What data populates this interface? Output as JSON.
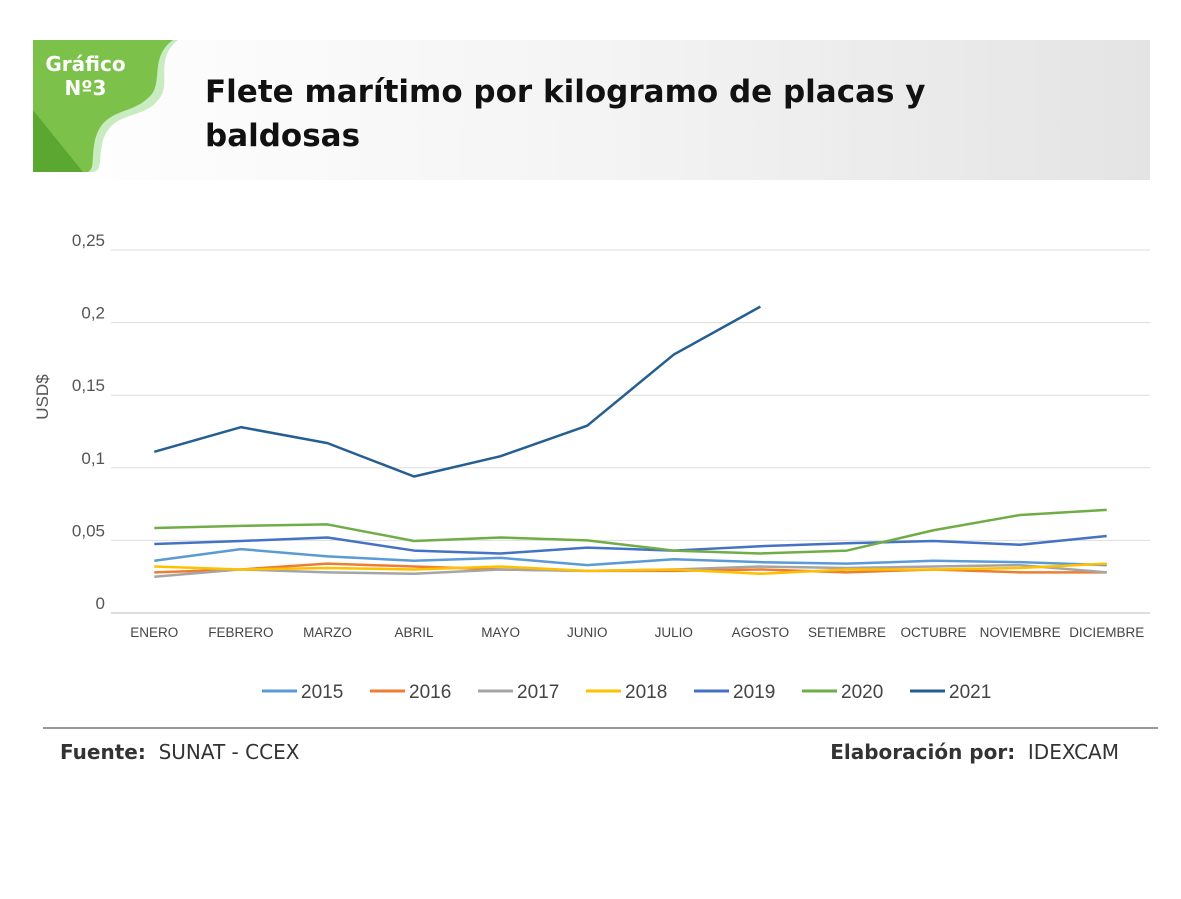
{
  "badge": {
    "line1": "Gráfico",
    "line2": "Nº3"
  },
  "chart_data": {
    "type": "line",
    "title": "Flete marítimo por kilogramo de placas y baldosas",
    "y_label": "USD$",
    "categories": [
      "ENERO",
      "FEBRERO",
      "MARZO",
      "ABRIL",
      "MAYO",
      "JUNIO",
      "JULIO",
      "AGOSTO",
      "SETIEMBRE",
      "OCTUBRE",
      "NOVIEMBRE",
      "DICIEMBRE"
    ],
    "series": [
      {
        "name": "2015",
        "color": "#5b9bd5",
        "values": [
          0.036,
          0.044,
          0.039,
          0.036,
          0.038,
          0.033,
          0.037,
          0.035,
          0.034,
          0.036,
          0.035,
          0.033
        ]
      },
      {
        "name": "2016",
        "color": "#ed7d31",
        "values": [
          0.028,
          0.03,
          0.034,
          0.032,
          0.03,
          0.029,
          0.029,
          0.03,
          0.028,
          0.03,
          0.028,
          0.028
        ]
      },
      {
        "name": "2017",
        "color": "#a5a5a5",
        "values": [
          0.025,
          0.03,
          0.028,
          0.027,
          0.03,
          0.029,
          0.03,
          0.032,
          0.031,
          0.032,
          0.033,
          0.028
        ]
      },
      {
        "name": "2018",
        "color": "#ffc000",
        "values": [
          0.032,
          0.03,
          0.031,
          0.03,
          0.032,
          0.029,
          0.03,
          0.027,
          0.03,
          0.03,
          0.031,
          0.034
        ]
      },
      {
        "name": "2019",
        "color": "#4472c4",
        "values": [
          0.0475,
          0.0496,
          0.052,
          0.043,
          0.041,
          0.045,
          0.043,
          0.046,
          0.048,
          0.0496,
          0.047,
          0.053
        ]
      },
      {
        "name": "2020",
        "color": "#70ad47",
        "values": [
          0.0585,
          0.06,
          0.061,
          0.0496,
          0.052,
          0.05,
          0.043,
          0.041,
          0.043,
          0.057,
          0.0675,
          0.071
        ]
      },
      {
        "name": "2021",
        "color": "#255e91",
        "values": [
          0.111,
          0.128,
          0.117,
          0.094,
          0.108,
          0.129,
          0.178,
          0.211,
          null,
          null,
          null,
          null
        ]
      }
    ],
    "ylim": [
      0,
      0.25
    ],
    "yticks": [
      0,
      {
        "value": 0.05,
        "label": "0,05"
      },
      {
        "value": 0.1,
        "label": "0,1"
      },
      {
        "value": 0.15,
        "label": "0,15"
      },
      {
        "value": 0.2,
        "label": "0,2"
      },
      {
        "value": 0.25,
        "label": "0,25"
      }
    ],
    "grid": true,
    "legend": "bottom"
  },
  "footer": {
    "source_label": "Fuente:",
    "source": "SUNAT - CCEX",
    "author_label": "Elaboración por:",
    "author": "IDEXCAM"
  }
}
